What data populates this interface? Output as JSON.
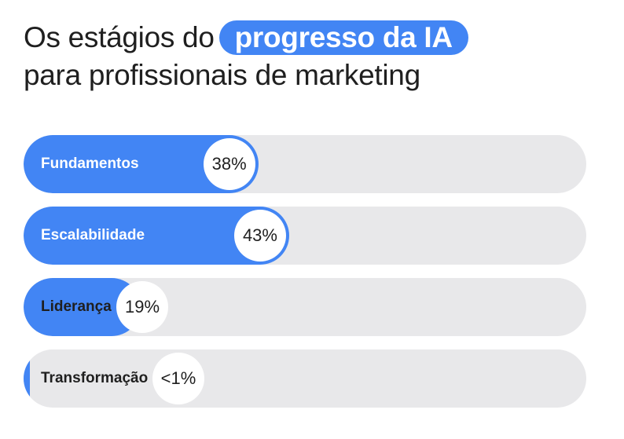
{
  "title": {
    "prefix": "Os estágios do",
    "highlight": "progresso da IA",
    "line2": "para profissionais de marketing"
  },
  "colors": {
    "accent": "#4285f4",
    "track": "#e8e8ea",
    "text": "#1f1f1f"
  },
  "chart_data": {
    "type": "bar",
    "orientation": "horizontal",
    "categories": [
      "Fundamentos",
      "Escalabilidade",
      "Liderança",
      "Transformação"
    ],
    "values": [
      38,
      43,
      19,
      1
    ],
    "value_labels": [
      "38%",
      "43%",
      "19%",
      "<1%"
    ],
    "xlim": [
      0,
      100
    ]
  }
}
